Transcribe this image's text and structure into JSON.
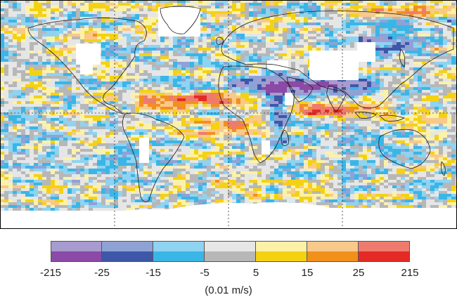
{
  "map": {
    "colors": {
      "land_outline": "#1a1a1a",
      "gridline": "#333333",
      "missing": "#ffffff",
      "frame": "#000000"
    }
  },
  "legend": {
    "unit": "(0.01 m/s)",
    "ticks": [
      "-215",
      "-25",
      "-15",
      "-5",
      "5",
      "15",
      "25",
      "215"
    ],
    "bins": [
      {
        "light": "#a79bcf",
        "dark": "#8a4aa6"
      },
      {
        "light": "#8fa2d6",
        "dark": "#3f57a8"
      },
      {
        "light": "#8fd3f2",
        "dark": "#3ab6e6"
      },
      {
        "light": "#e6e6e6",
        "dark": "#b7b7b7"
      },
      {
        "light": "#fbf2a8",
        "dark": "#f4d213"
      },
      {
        "light": "#f9c98a",
        "dark": "#f2901c"
      },
      {
        "light": "#ef7b6e",
        "dark": "#e42a25"
      }
    ]
  }
}
